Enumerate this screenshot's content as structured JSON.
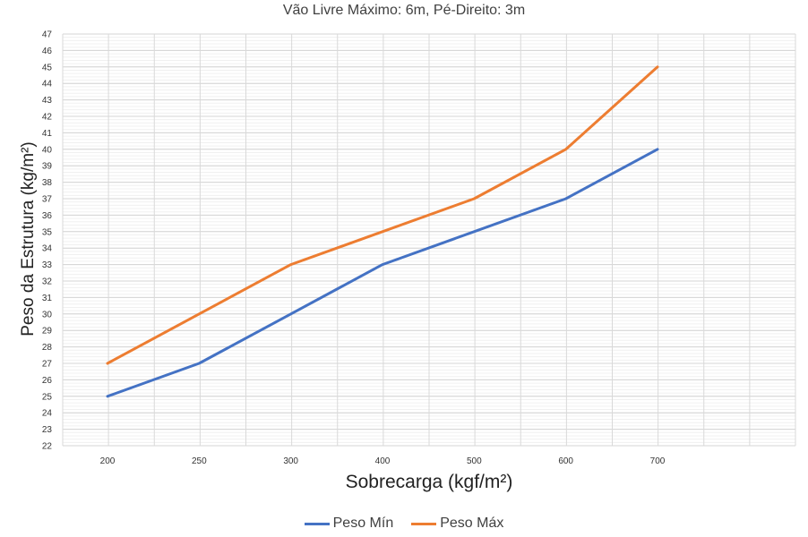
{
  "chart_data": {
    "type": "line",
    "title": "Vão Livre Máximo: 6m, Pé-Direito: 3m",
    "xlabel": "Sobrecarga (kgf/m²)",
    "ylabel": "Peso da Estrutura (kg/m²)",
    "categories": [
      "200",
      "250",
      "300",
      "400",
      "500",
      "600",
      "700"
    ],
    "ylim": [
      22,
      47
    ],
    "y_ticks": [
      22,
      23,
      24,
      25,
      26,
      27,
      28,
      29,
      30,
      31,
      32,
      33,
      34,
      35,
      36,
      37,
      38,
      39,
      40,
      41,
      42,
      43,
      44,
      45,
      46,
      47
    ],
    "grid": true,
    "legend_position": "bottom",
    "series": [
      {
        "name": "Peso Mín",
        "color": "#4472C4",
        "values": [
          25,
          27,
          30,
          33,
          35,
          37,
          40
        ]
      },
      {
        "name": "Peso Máx",
        "color": "#ED7D31",
        "values": [
          27,
          30,
          33,
          35,
          37,
          40,
          45
        ]
      }
    ]
  }
}
